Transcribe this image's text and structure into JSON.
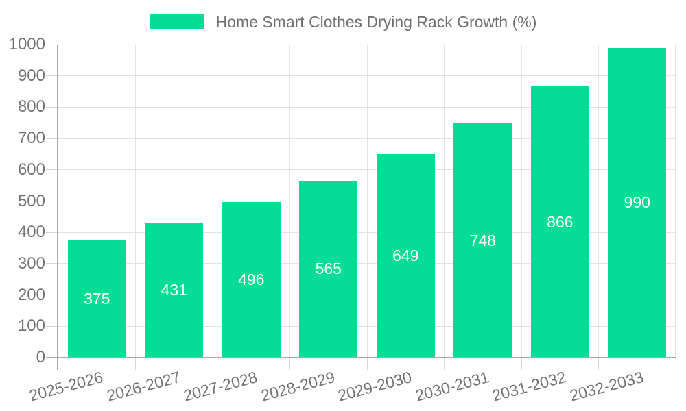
{
  "legend": {
    "label": "Home Smart Clothes Drying Rack Growth (%)"
  },
  "chart_data": {
    "type": "bar",
    "title": "Home Smart Clothes Drying Rack Growth (%)",
    "categories": [
      "2025-2026",
      "2026-2027",
      "2027-2028",
      "2028-2029",
      "2029-2030",
      "2030-2031",
      "2031-2032",
      "2032-2033"
    ],
    "values": [
      375,
      431,
      496,
      565,
      649,
      748,
      866,
      990
    ],
    "xlabel": "",
    "ylabel": "",
    "ylim": [
      0,
      1000
    ],
    "yticks": [
      0,
      100,
      200,
      300,
      400,
      500,
      600,
      700,
      800,
      900,
      1000
    ],
    "grid": true,
    "legend_position": "top-center",
    "x_label_rotation_deg": -15,
    "value_labels": "centered-inside-bars",
    "colors": {
      "bar": "#05dc96",
      "value_label": "#ffffff",
      "grid": "#e3e3e3",
      "axis": "#a8a8a8",
      "tick": "#d6d6d6",
      "text": "#737373",
      "background": "#ffffff"
    }
  }
}
